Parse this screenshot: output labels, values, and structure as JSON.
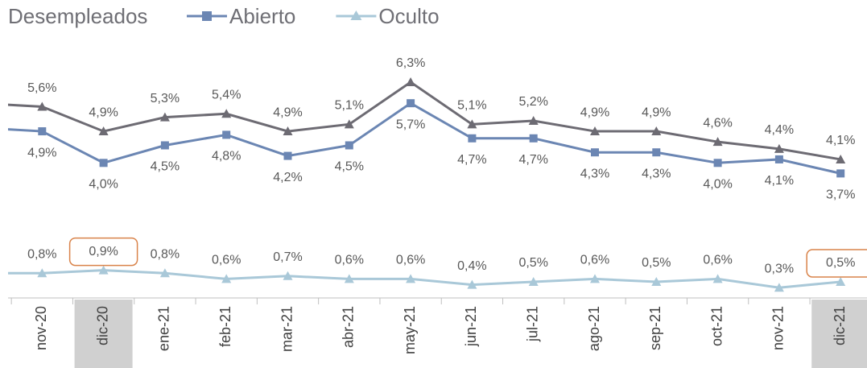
{
  "chart_data": {
    "type": "line",
    "title": "Desempleados",
    "categories": [
      null,
      "nov-20",
      "dic-20",
      "ene-21",
      "feb-21",
      "mar-21",
      "abr-21",
      "may-21",
      "jun-21",
      "jul-21",
      "ago-21",
      "sep-21",
      "oct-21",
      "nov-21",
      "dic-21"
    ],
    "highlight": [
      "dic-20",
      "dic-21"
    ],
    "series": [
      {
        "color": "#6d6b73",
        "marker": "triangle",
        "label_position": "above",
        "values": [
          5.7,
          5.6,
          4.9,
          5.3,
          5.4,
          4.9,
          5.1,
          6.3,
          5.1,
          5.2,
          4.9,
          4.9,
          4.6,
          4.4,
          4.1
        ],
        "value_labels": [
          null,
          "5,6%",
          "4,9%",
          "5,3%",
          "5,4%",
          "4,9%",
          "5,1%",
          "6,3%",
          "5,1%",
          "5,2%",
          "4,9%",
          "4,9%",
          "4,6%",
          "4,4%",
          "4,1%"
        ]
      },
      {
        "name": "Abierto",
        "color": "#6b86b3",
        "marker": "square",
        "label_position": "below",
        "values": [
          5.0,
          4.9,
          4.0,
          4.5,
          4.8,
          4.2,
          4.5,
          5.7,
          4.7,
          4.7,
          4.3,
          4.3,
          4.0,
          4.1,
          3.7
        ],
        "value_labels": [
          null,
          "4,9%",
          "4,0%",
          "4,5%",
          "4,8%",
          "4,2%",
          "4,5%",
          "5,7%",
          "4,7%",
          "4,7%",
          "4,3%",
          "4,3%",
          "4,0%",
          "4,1%",
          "3,7%"
        ]
      },
      {
        "name": "Oculto",
        "color": "#a9c8d8",
        "marker": "triangle",
        "label_position": "above",
        "axis": "y2",
        "values": [
          0.8,
          0.8,
          0.9,
          0.8,
          0.6,
          0.7,
          0.6,
          0.6,
          0.4,
          0.5,
          0.6,
          0.5,
          0.6,
          0.3,
          0.5
        ],
        "value_labels": [
          null,
          "0,8%",
          "0,9%",
          "0,8%",
          "0,6%",
          "0,7%",
          "0,6%",
          "0,6%",
          "0,4%",
          "0,5%",
          "0,6%",
          "0,5%",
          "0,6%",
          "0,3%",
          "0,5%"
        ]
      }
    ],
    "ylim": [
      3,
      6.5
    ],
    "y2lim": [
      0,
      1
    ],
    "grid": false
  }
}
